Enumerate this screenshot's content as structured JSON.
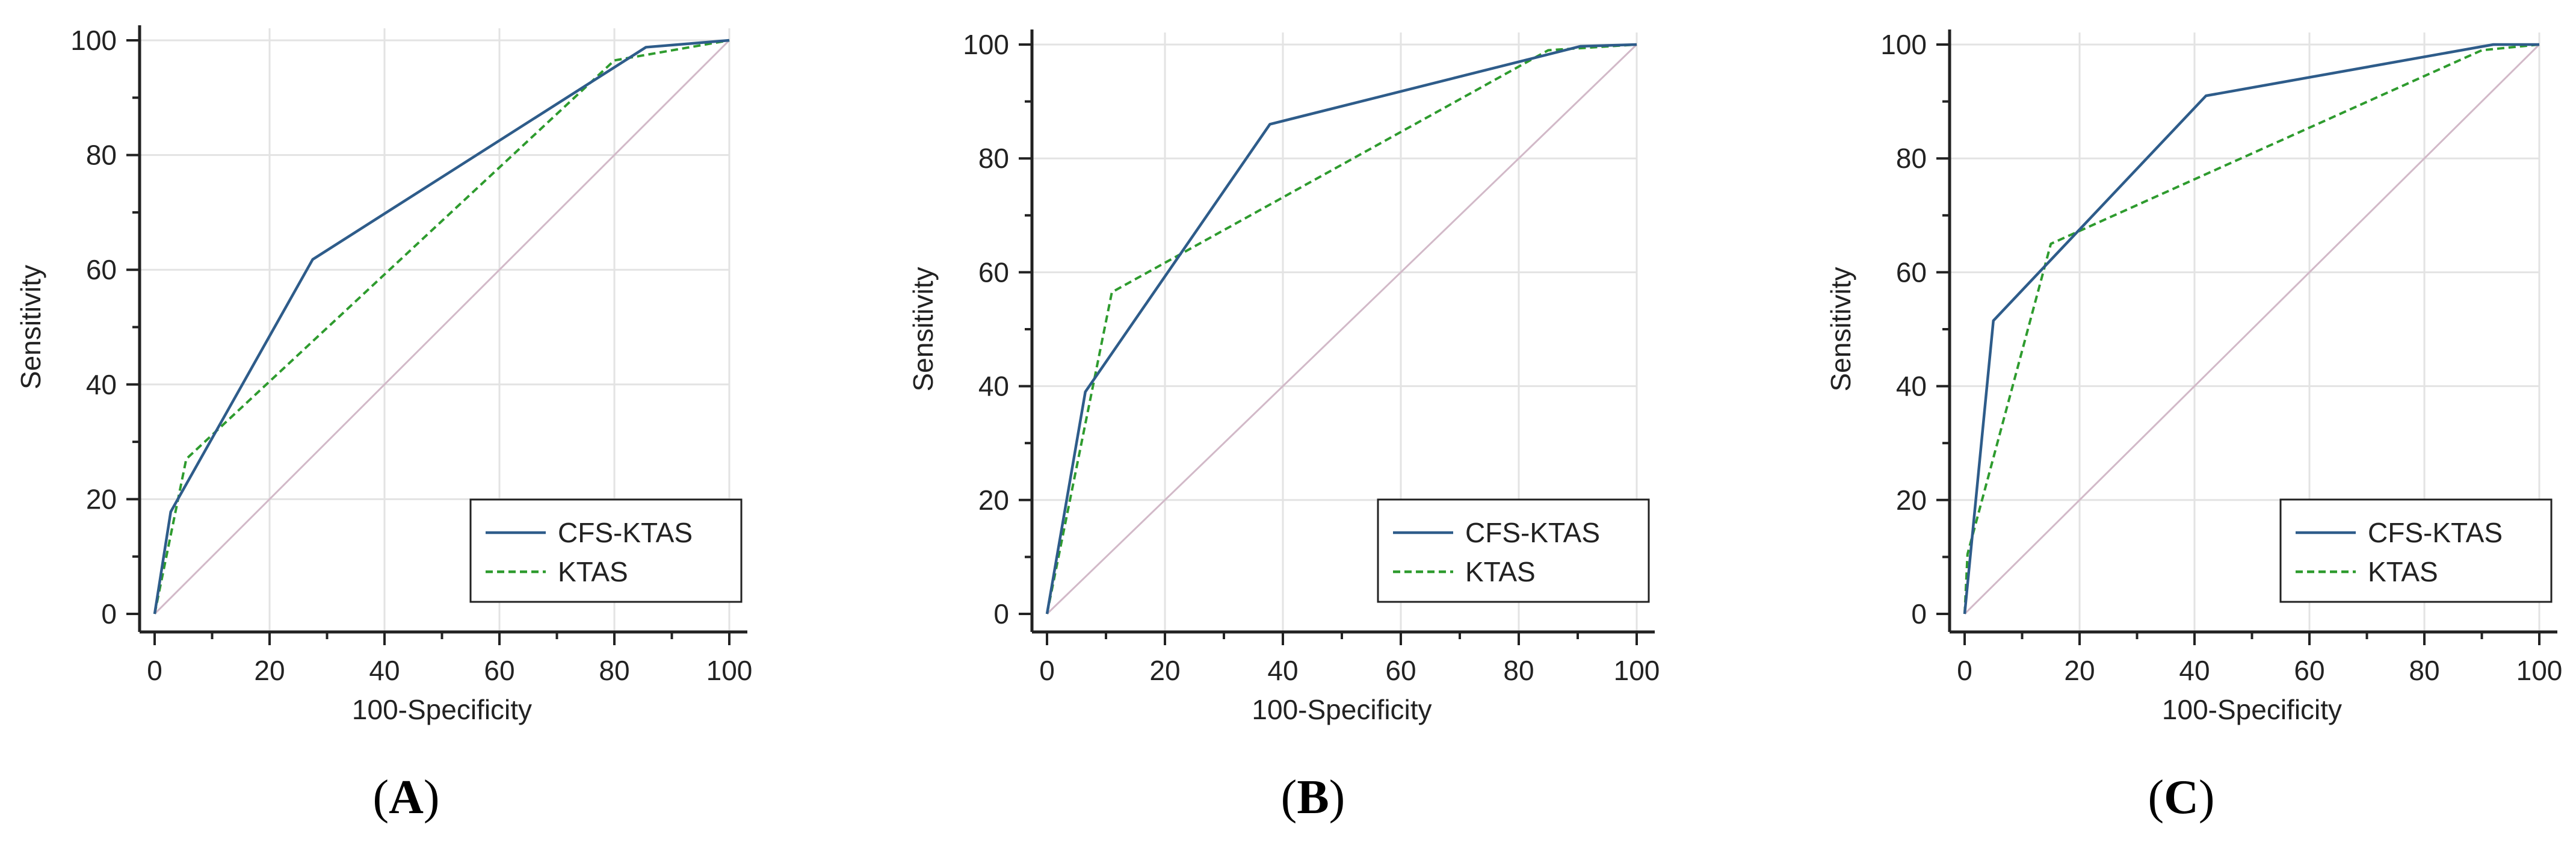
{
  "chart_data": [
    {
      "type": "line",
      "panel": "A",
      "xlabel": "100-Specificity",
      "ylabel": "Sensitivity",
      "xlim": [
        0,
        100
      ],
      "ylim": [
        0,
        100
      ],
      "xticks": [
        0,
        20,
        40,
        60,
        80,
        100
      ],
      "yticks": [
        0,
        20,
        40,
        60,
        80,
        100
      ],
      "grid": true,
      "legend": "bottom-right",
      "series": [
        {
          "name": "CFS-KTAS",
          "color": "#2e5c8a",
          "style": "solid",
          "x": [
            0,
            0,
            2.8,
            27.5,
            85.5,
            100
          ],
          "y": [
            0,
            0,
            17.8,
            61.8,
            98.8,
            100
          ]
        },
        {
          "name": "KTAS",
          "color": "#2e9b2e",
          "style": "dashed",
          "x": [
            0,
            0,
            5.5,
            80.0,
            100
          ],
          "y": [
            0,
            0,
            27.0,
            96.5,
            100
          ]
        }
      ],
      "reference_line": {
        "x": [
          0,
          100
        ],
        "y": [
          0,
          100
        ],
        "color": "#d2b9c8"
      }
    },
    {
      "type": "line",
      "panel": "B",
      "xlabel": "100-Specificity",
      "ylabel": "Sensitivity",
      "xlim": [
        0,
        100
      ],
      "ylim": [
        0,
        100
      ],
      "xticks": [
        0,
        20,
        40,
        60,
        80,
        100
      ],
      "yticks": [
        0,
        20,
        40,
        60,
        80,
        100
      ],
      "grid": true,
      "legend": "bottom-right",
      "series": [
        {
          "name": "CFS-KTAS",
          "color": "#2e5c8a",
          "style": "solid",
          "x": [
            0,
            0,
            6.5,
            37.8,
            90.5,
            100
          ],
          "y": [
            0,
            0,
            39.0,
            86.0,
            99.7,
            100
          ]
        },
        {
          "name": "KTAS",
          "color": "#2e9b2e",
          "style": "dashed",
          "x": [
            0,
            0,
            11.0,
            85.0,
            100
          ],
          "y": [
            0,
            0,
            56.5,
            99.0,
            100
          ]
        }
      ],
      "reference_line": {
        "x": [
          0,
          100
        ],
        "y": [
          0,
          100
        ],
        "color": "#d2b9c8"
      }
    },
    {
      "type": "line",
      "panel": "C",
      "xlabel": "100-Specificity",
      "ylabel": "Sensitivity",
      "xlim": [
        0,
        100
      ],
      "ylim": [
        0,
        100
      ],
      "xticks": [
        0,
        20,
        40,
        60,
        80,
        100
      ],
      "yticks": [
        0,
        20,
        40,
        60,
        80,
        100
      ],
      "grid": true,
      "legend": "bottom-right",
      "series": [
        {
          "name": "CFS-KTAS",
          "color": "#2e5c8a",
          "style": "solid",
          "x": [
            0,
            0,
            5.0,
            42.0,
            92.0,
            100
          ],
          "y": [
            0,
            0,
            51.5,
            91.0,
            100,
            100
          ]
        },
        {
          "name": "KTAS",
          "color": "#2e9b2e",
          "style": "dashed",
          "x": [
            0,
            0,
            0.5,
            15.0,
            90.0,
            100
          ],
          "y": [
            0,
            0,
            10.5,
            65.0,
            99.0,
            100
          ]
        }
      ],
      "reference_line": {
        "x": [
          0,
          100
        ],
        "y": [
          0,
          100
        ],
        "color": "#d2b9c8"
      }
    }
  ],
  "labels": {
    "panel_a_open": "(",
    "panel_a_letter": "A",
    "panel_a_close": ")",
    "panel_b_open": "(",
    "panel_b_letter": "B",
    "panel_b_close": ")",
    "panel_c_open": "(",
    "panel_c_letter": "C",
    "panel_c_close": ")"
  }
}
